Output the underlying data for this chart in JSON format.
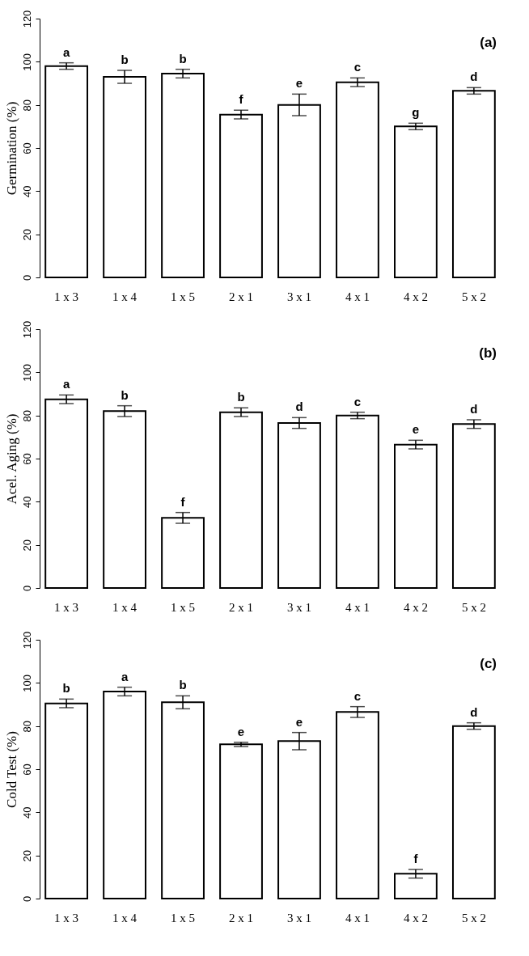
{
  "chart_data": [
    {
      "type": "bar",
      "ylabel": "Germination (%)",
      "categories": [
        "1 x 3",
        "1 x 4",
        "1 x 5",
        "2 x 1",
        "3 x 1",
        "4 x 1",
        "4 x 2",
        "5 x 2"
      ],
      "series": [
        {
          "color": "#ffffff",
          "values": [
            98,
            93,
            94.5,
            75.5,
            80,
            90.5,
            70,
            86.5
          ],
          "errors": [
            1.5,
            3,
            2,
            2,
            5,
            2,
            1.5,
            1.5
          ]
        }
      ],
      "ylim": [
        0,
        120
      ],
      "yticks": [
        0,
        20,
        40,
        60,
        80,
        100,
        120
      ],
      "grid": false,
      "annotations": [
        "(a)",
        {
          "text": "a",
          "x": "1 x 3",
          "y": 99.5
        },
        {
          "text": "b",
          "x": "1 x 4",
          "y": 96
        },
        {
          "text": "b",
          "x": "1 x 5",
          "y": 96.5
        },
        {
          "text": "f",
          "x": "2 x 1",
          "y": 77.5
        },
        {
          "text": "e",
          "x": "3 x 1",
          "y": 85
        },
        {
          "text": "c",
          "x": "4 x 1",
          "y": 92.5
        },
        {
          "text": "g",
          "x": "4 x 2",
          "y": 71.5
        },
        {
          "text": "d",
          "x": "5 x 2",
          "y": 88
        }
      ]
    },
    {
      "type": "bar",
      "ylabel": "Acel. Aging (%)",
      "categories": [
        "1 x 3",
        "1 x 4",
        "1 x 5",
        "2 x 1",
        "3 x 1",
        "4 x 1",
        "4 x 2",
        "5 x 2"
      ],
      "series": [
        {
          "color": "#ffffff",
          "values": [
            87.5,
            82,
            32.5,
            81.5,
            76.5,
            80,
            66.5,
            76
          ],
          "errors": [
            2,
            2.5,
            2.5,
            2,
            2.5,
            1.5,
            2,
            2
          ]
        }
      ],
      "ylim": [
        0,
        120
      ],
      "yticks": [
        0,
        20,
        40,
        60,
        80,
        100,
        120
      ],
      "grid": false,
      "annotations": [
        "(b)",
        {
          "text": "a",
          "x": "1 x 3",
          "y": 89.5
        },
        {
          "text": "b",
          "x": "1 x 4",
          "y": 84.5
        },
        {
          "text": "f",
          "x": "1 x 5",
          "y": 35
        },
        {
          "text": "b",
          "x": "2 x 1",
          "y": 83.5
        },
        {
          "text": "d",
          "x": "3 x 1",
          "y": 79
        },
        {
          "text": "c",
          "x": "4 x 1",
          "y": 81.5
        },
        {
          "text": "e",
          "x": "4 x 2",
          "y": 68.5
        },
        {
          "text": "d",
          "x": "5 x 2",
          "y": 78
        }
      ]
    },
    {
      "type": "bar",
      "ylabel": "Cold Test (%)",
      "categories": [
        "1 x 3",
        "1 x 4",
        "1 x 5",
        "2 x 1",
        "3 x 1",
        "4 x 1",
        "4 x 2",
        "5 x 2"
      ],
      "series": [
        {
          "color": "#ffffff",
          "values": [
            90.5,
            96,
            91,
            71.5,
            73,
            86.5,
            11.5,
            80
          ],
          "errors": [
            2,
            2,
            3,
            1,
            4,
            2.5,
            2,
            1.5
          ]
        }
      ],
      "ylim": [
        0,
        120
      ],
      "yticks": [
        0,
        20,
        40,
        60,
        80,
        100,
        120
      ],
      "grid": false,
      "annotations": [
        "(c)",
        {
          "text": "b",
          "x": "1 x 3",
          "y": 92.5
        },
        {
          "text": "a",
          "x": "1 x 4",
          "y": 98
        },
        {
          "text": "b",
          "x": "1 x 5",
          "y": 94
        },
        {
          "text": "e",
          "x": "2 x 1",
          "y": 72.5
        },
        {
          "text": "e",
          "x": "3 x 1",
          "y": 77
        },
        {
          "text": "c",
          "x": "4 x 1",
          "y": 89
        },
        {
          "text": "f",
          "x": "4 x 2",
          "y": 13.5
        },
        {
          "text": "d",
          "x": "5 x 2",
          "y": 81.5
        }
      ]
    }
  ]
}
